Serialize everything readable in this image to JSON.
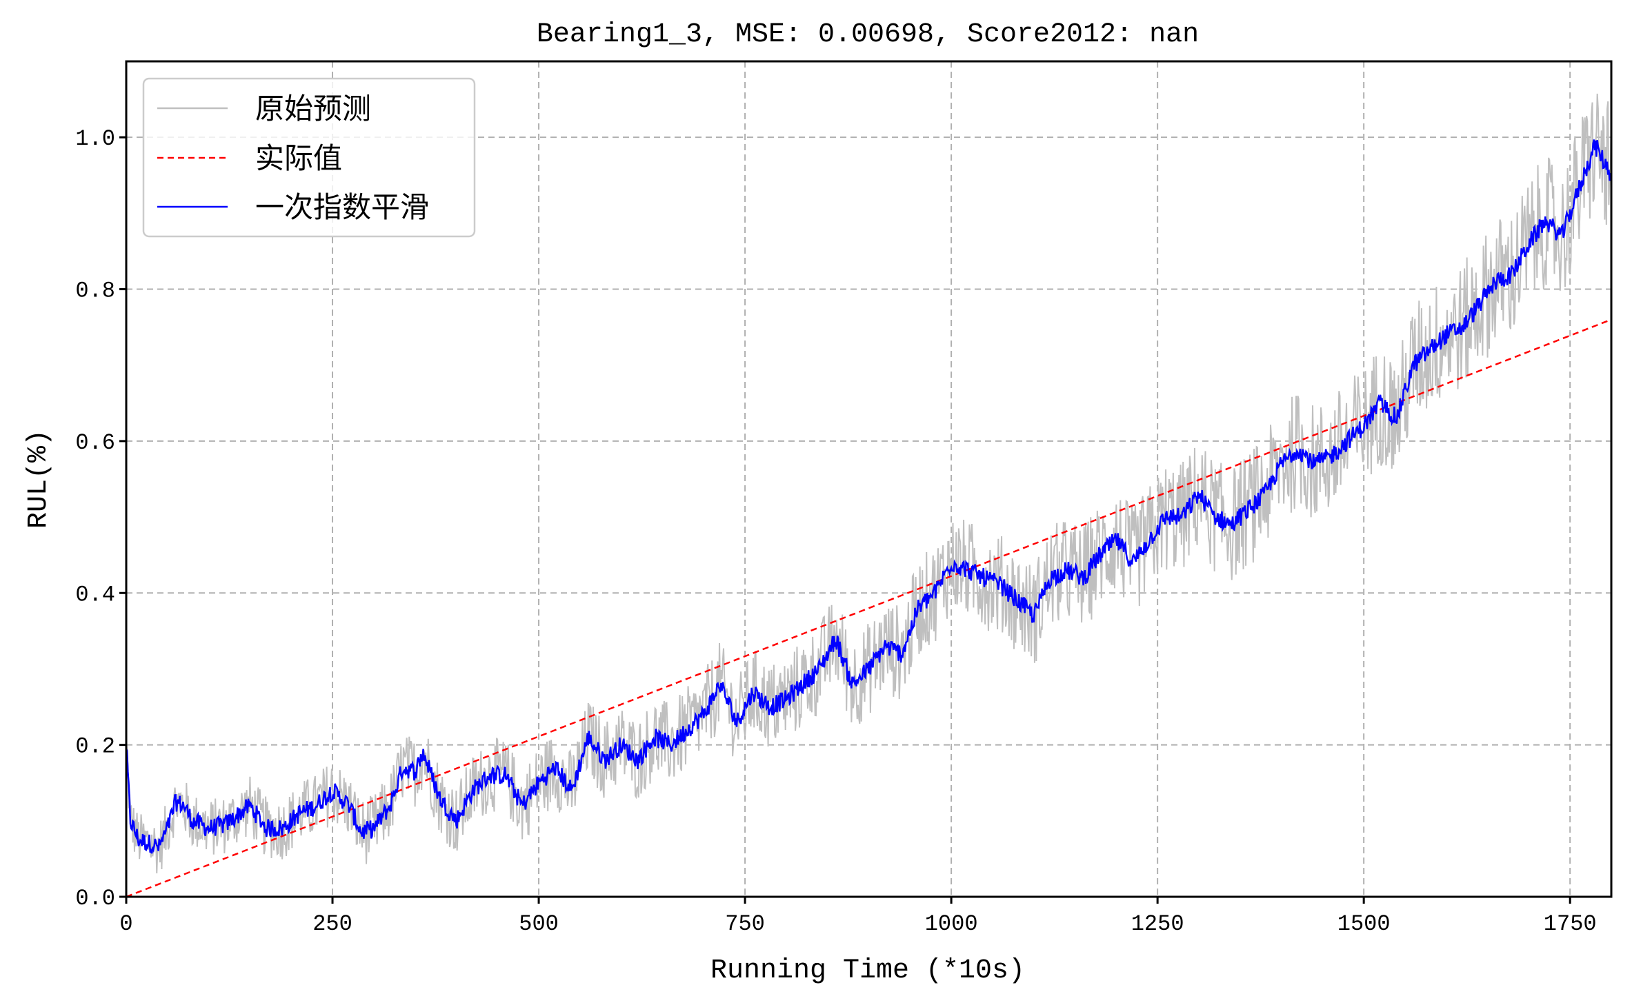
{
  "chart_data": {
    "type": "line",
    "title": "Bearing1_3, MSE: 0.00698, Score2012: nan",
    "xlabel": "Running Time (*10s)",
    "ylabel": "RUL(%)",
    "xlim": [
      0,
      1800
    ],
    "ylim": [
      0,
      1.1
    ],
    "xticks": [
      0,
      250,
      500,
      750,
      1000,
      1250,
      1500,
      1750
    ],
    "xtick_labels": [
      "0",
      "250",
      "500",
      "750",
      "1000",
      "1250",
      "1500",
      "1750"
    ],
    "yticks": [
      0.0,
      0.2,
      0.4,
      0.6,
      0.8,
      1.0
    ],
    "ytick_labels": [
      "0.0",
      "0.2",
      "0.4",
      "0.6",
      "0.8",
      "1.0"
    ],
    "grid": true,
    "legend_position": "upper left",
    "series": [
      {
        "name": "原始预测",
        "color": "#bfbfbf",
        "style": "solid",
        "description": "raw noisy prediction around smoothed curve",
        "noise_amplitude": 0.06
      },
      {
        "name": "实际值",
        "color": "#ff0000",
        "style": "dashed",
        "x": [
          0,
          1800
        ],
        "y": [
          0.0,
          0.76
        ]
      },
      {
        "name": "一次指数平滑",
        "color": "#0000ff",
        "style": "solid",
        "x": [
          0,
          5,
          15,
          30,
          40,
          50,
          60,
          70,
          80,
          100,
          120,
          150,
          170,
          190,
          210,
          230,
          250,
          270,
          285,
          300,
          320,
          335,
          350,
          360,
          380,
          400,
          420,
          440,
          460,
          480,
          500,
          520,
          540,
          560,
          580,
          600,
          620,
          640,
          660,
          680,
          700,
          720,
          740,
          760,
          780,
          800,
          820,
          840,
          860,
          880,
          900,
          920,
          940,
          960,
          980,
          1000,
          1020,
          1040,
          1060,
          1080,
          1100,
          1120,
          1140,
          1160,
          1180,
          1200,
          1220,
          1240,
          1260,
          1280,
          1300,
          1320,
          1340,
          1360,
          1380,
          1400,
          1420,
          1440,
          1460,
          1480,
          1500,
          1520,
          1540,
          1560,
          1580,
          1600,
          1620,
          1640,
          1660,
          1680,
          1700,
          1720,
          1740,
          1760,
          1780,
          1800
        ],
        "y": [
          0.2,
          0.1,
          0.075,
          0.07,
          0.065,
          0.09,
          0.125,
          0.12,
          0.1,
          0.09,
          0.095,
          0.12,
          0.09,
          0.09,
          0.11,
          0.12,
          0.14,
          0.12,
          0.085,
          0.09,
          0.12,
          0.17,
          0.165,
          0.19,
          0.13,
          0.1,
          0.14,
          0.16,
          0.16,
          0.12,
          0.15,
          0.17,
          0.14,
          0.21,
          0.18,
          0.2,
          0.18,
          0.21,
          0.2,
          0.22,
          0.24,
          0.28,
          0.23,
          0.27,
          0.25,
          0.26,
          0.28,
          0.3,
          0.34,
          0.28,
          0.3,
          0.33,
          0.32,
          0.38,
          0.4,
          0.44,
          0.43,
          0.42,
          0.41,
          0.39,
          0.37,
          0.42,
          0.43,
          0.42,
          0.45,
          0.47,
          0.44,
          0.47,
          0.5,
          0.5,
          0.53,
          0.5,
          0.49,
          0.51,
          0.53,
          0.57,
          0.59,
          0.57,
          0.58,
          0.6,
          0.62,
          0.65,
          0.63,
          0.7,
          0.72,
          0.74,
          0.75,
          0.78,
          0.81,
          0.82,
          0.86,
          0.89,
          0.87,
          0.93,
          0.99,
          0.95
        ]
      }
    ]
  }
}
